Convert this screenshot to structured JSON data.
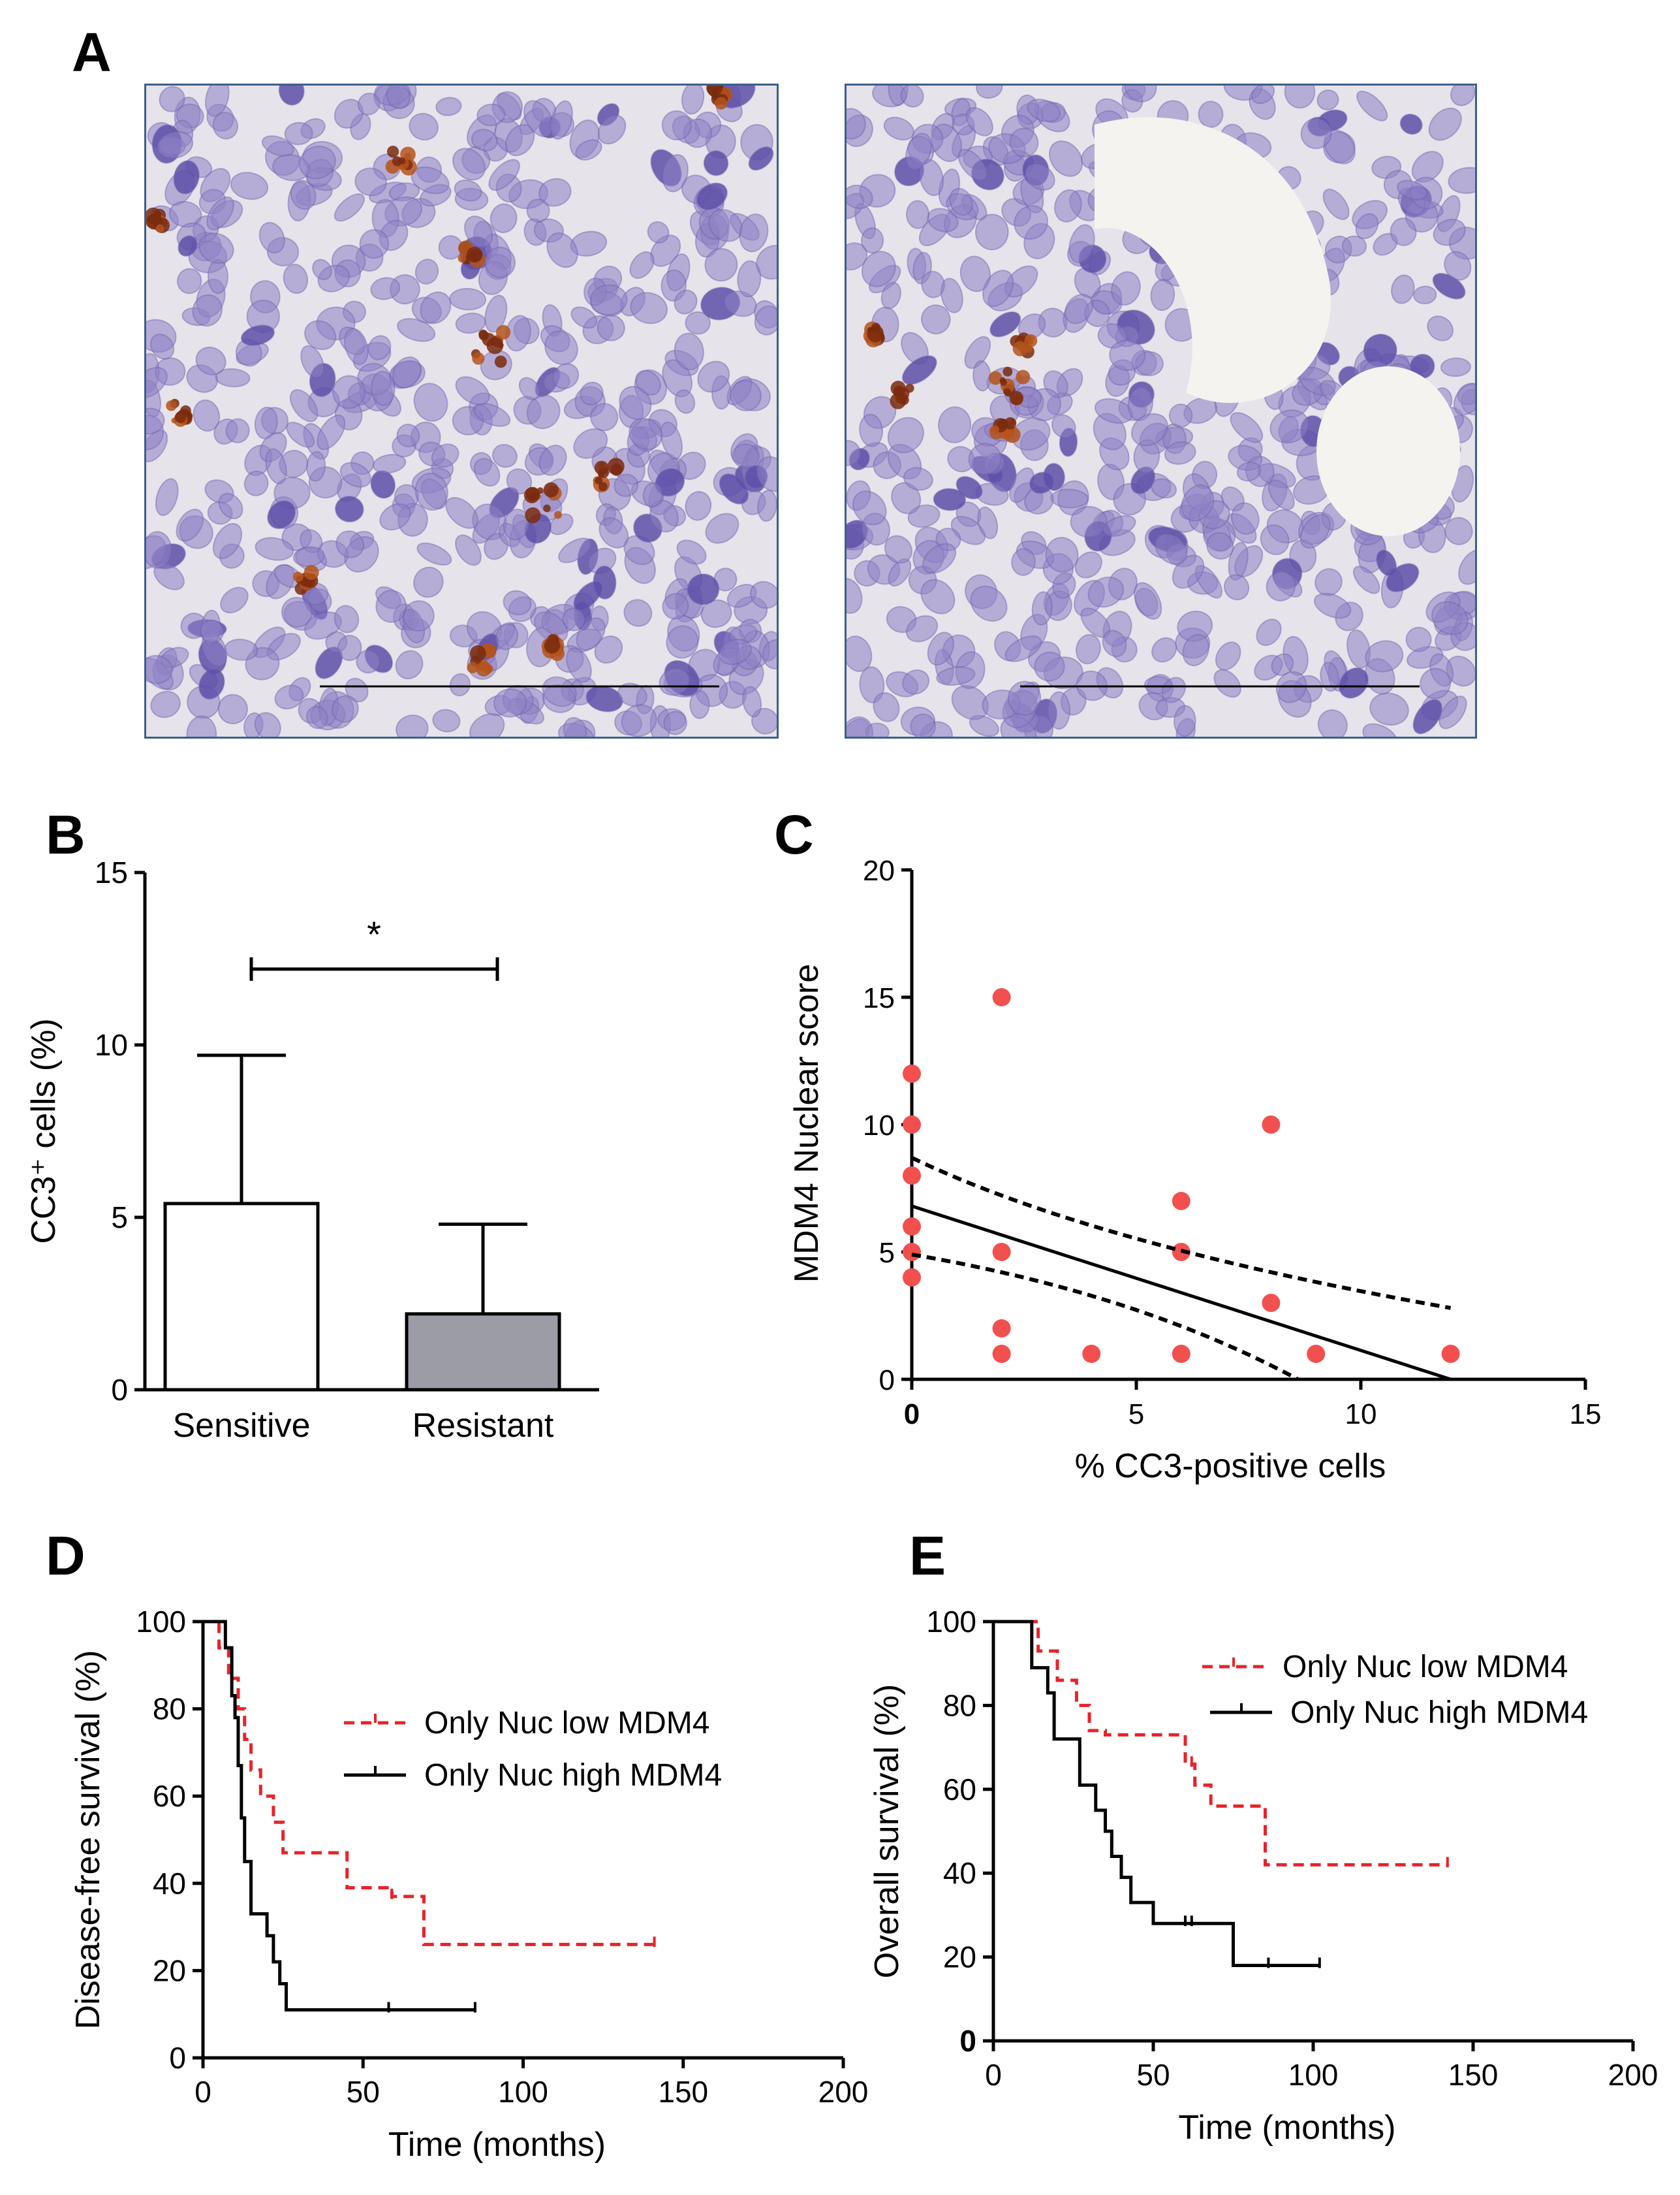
{
  "panels": {
    "A": {
      "letter": "A"
    },
    "B": {
      "letter": "B"
    },
    "C": {
      "letter": "C"
    },
    "D": {
      "letter": "D"
    },
    "E": {
      "letter": "E"
    }
  },
  "colors": {
    "red": "#e8232a",
    "scatter_red": "#f2504f",
    "black": "#000000",
    "bar_sensitive": "#ffffff",
    "bar_resistant": "#9c9ca6",
    "tissue_bg": "#e6e3ea",
    "nucleus": "#8e82c4",
    "stain": "#b4541c",
    "frame": "#3c5f8a"
  },
  "chart_data": [
    {
      "id": "B",
      "type": "bar",
      "categories": [
        "Sensitive",
        "Resistant"
      ],
      "values": [
        5.4,
        2.2
      ],
      "error_upper": [
        9.7,
        4.8
      ],
      "ylabel": "CC3⁺ cells (%)",
      "ylim": [
        0,
        15
      ],
      "yticks": [
        0,
        5,
        10,
        15
      ],
      "significance": "*"
    },
    {
      "id": "C",
      "type": "scatter",
      "xlabel": "% CC3-positive cells",
      "ylabel": "MDM4  Nuclear score",
      "xlim": [
        0,
        15
      ],
      "ylim": [
        0,
        20
      ],
      "xticks": [
        0,
        5,
        10,
        15
      ],
      "yticks": [
        0,
        5,
        10,
        15,
        20
      ],
      "points": [
        [
          0,
          12
        ],
        [
          0,
          10
        ],
        [
          0,
          8
        ],
        [
          0,
          6
        ],
        [
          0,
          5
        ],
        [
          0,
          4
        ],
        [
          2,
          15
        ],
        [
          2,
          5
        ],
        [
          2,
          2
        ],
        [
          2,
          1
        ],
        [
          4,
          1
        ],
        [
          6,
          7
        ],
        [
          6,
          5
        ],
        [
          6,
          1
        ],
        [
          8,
          10
        ],
        [
          8,
          3
        ],
        [
          9,
          1
        ],
        [
          12,
          1
        ]
      ],
      "fit": {
        "x": [
          0,
          12
        ],
        "y": [
          6.8,
          0
        ]
      },
      "ci_upper": {
        "x": [
          0,
          12
        ],
        "y": [
          8.7,
          2.8
        ]
      },
      "ci_lower": {
        "x": [
          0,
          8.6
        ],
        "y": [
          4.9,
          0
        ]
      }
    },
    {
      "id": "D",
      "type": "line",
      "subtype": "kaplan-meier",
      "xlabel": "Time  (months)",
      "ylabel": "Disease-free survival  (%)",
      "xlim": [
        0,
        200
      ],
      "ylim": [
        0,
        100
      ],
      "xticks": [
        0,
        50,
        100,
        150,
        200
      ],
      "yticks": [
        0,
        20,
        40,
        60,
        80,
        100
      ],
      "series": [
        {
          "name": "Only Nuc low MDM4",
          "style": "dashed-red",
          "x": [
            0,
            5,
            5,
            8,
            8,
            11,
            11,
            13,
            13,
            15,
            15,
            18,
            18,
            22,
            22,
            25,
            25,
            45,
            45,
            59,
            59,
            69,
            69,
            141
          ],
          "y": [
            100,
            100,
            94,
            94,
            87,
            87,
            80,
            80,
            73,
            73,
            66,
            66,
            60,
            60,
            54,
            54,
            47,
            47,
            39,
            39,
            37,
            37,
            26,
            26
          ],
          "censor_x": [
            59,
            141
          ]
        },
        {
          "name": "Only Nuc high MDM4",
          "style": "solid-black",
          "x": [
            0,
            7,
            7,
            9,
            9,
            10,
            10,
            11,
            11,
            12,
            12,
            13,
            13,
            15,
            15,
            20,
            20,
            22,
            22,
            24,
            24,
            26,
            26,
            85
          ],
          "y": [
            100,
            100,
            94,
            94,
            83,
            83,
            78,
            78,
            67,
            67,
            55,
            55,
            45,
            45,
            33,
            33,
            28,
            28,
            22,
            22,
            17,
            17,
            11,
            11
          ],
          "censor_x": [
            58,
            85
          ]
        }
      ]
    },
    {
      "id": "E",
      "type": "line",
      "subtype": "kaplan-meier",
      "xlabel": "Time  (months)",
      "ylabel": "Overall survival  (%)",
      "xlim": [
        0,
        200
      ],
      "ylim": [
        0,
        100
      ],
      "xticks": [
        0,
        50,
        100,
        150,
        200
      ],
      "yticks": [
        0,
        20,
        40,
        60,
        80,
        100
      ],
      "series": [
        {
          "name": "Only Nuc low MDM4",
          "style": "dashed-red",
          "x": [
            0,
            14,
            14,
            20,
            20,
            26,
            26,
            30,
            30,
            35,
            35,
            60,
            60,
            63,
            63,
            68,
            68,
            85,
            85,
            142
          ],
          "y": [
            100,
            100,
            93,
            93,
            86,
            86,
            80,
            80,
            74,
            74,
            73,
            73,
            66,
            66,
            61,
            61,
            56,
            56,
            42,
            42
          ],
          "censor_x": [
            62,
            142
          ]
        },
        {
          "name": "Only Nuc high MDM4",
          "style": "solid-black",
          "x": [
            0,
            12,
            12,
            17,
            17,
            19,
            19,
            27,
            27,
            32,
            32,
            35,
            35,
            37,
            37,
            40,
            40,
            43,
            43,
            50,
            50,
            75,
            75,
            102
          ],
          "y": [
            100,
            100,
            89,
            89,
            83,
            83,
            72,
            72,
            61,
            61,
            55,
            55,
            50,
            50,
            44,
            44,
            39,
            39,
            33,
            33,
            28,
            28,
            18,
            18
          ],
          "censor_x": [
            60,
            62,
            86,
            102
          ]
        }
      ]
    }
  ]
}
